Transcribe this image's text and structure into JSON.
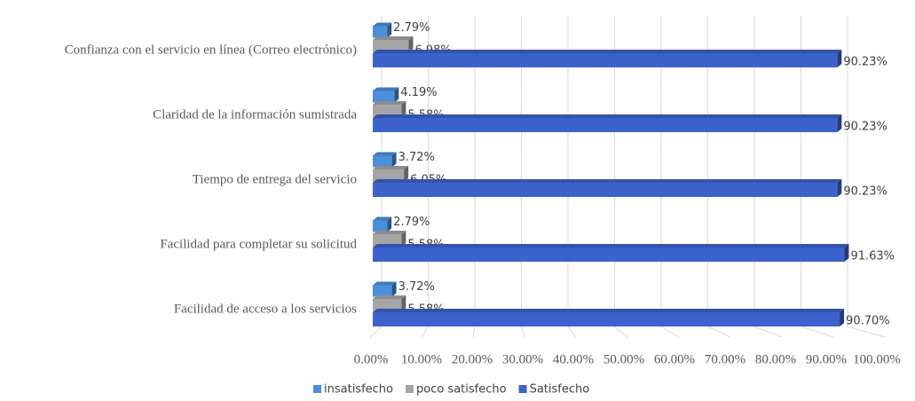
{
  "chart_data": {
    "type": "bar3d_horizontal",
    "categories": [
      "Confianza con el servicio en línea (Correo electrónico)",
      "Claridad de la información sumistrada",
      "Tiempo de entrega del servicio",
      "Facilidad para completar su solicitud",
      "Facilidad de acceso a los servicios"
    ],
    "series": [
      {
        "name": "insatisfecho",
        "color": "#4a8fdc",
        "values": [
          2.79,
          4.19,
          3.72,
          2.79,
          3.72
        ],
        "value_labels": [
          "2.79%",
          "4.19%",
          "3.72%",
          "2.79%",
          "3.72%"
        ]
      },
      {
        "name": "poco satisfecho",
        "color": "#a5a5a5",
        "values": [
          6.98,
          5.58,
          6.05,
          5.58,
          5.58
        ],
        "value_labels": [
          "6.98%",
          "5.58%",
          "6.05%",
          "5.58%",
          "5.58%"
        ]
      },
      {
        "name": "Satisfecho",
        "color": "#3c62cc",
        "values": [
          90.23,
          90.23,
          90.23,
          91.63,
          90.7
        ],
        "value_labels": [
          "90.23%",
          "90.23%",
          "90.23%",
          "91.63%",
          "90.70%"
        ]
      }
    ],
    "xlim": [
      0,
      100
    ],
    "xticks": [
      {
        "value": 0,
        "label": "0.00%"
      },
      {
        "value": 10,
        "label": "10.00%"
      },
      {
        "value": 20,
        "label": "20.00%"
      },
      {
        "value": 30,
        "label": "30.00%"
      },
      {
        "value": 40,
        "label": "40.00%"
      },
      {
        "value": 50,
        "label": "50.00%"
      },
      {
        "value": 60,
        "label": "60.00%"
      },
      {
        "value": 70,
        "label": "70.00%"
      },
      {
        "value": 80,
        "label": "80.00%"
      },
      {
        "value": 90,
        "label": "90.00%"
      },
      {
        "value": 100,
        "label": "100.00%"
      }
    ],
    "grid": true
  }
}
